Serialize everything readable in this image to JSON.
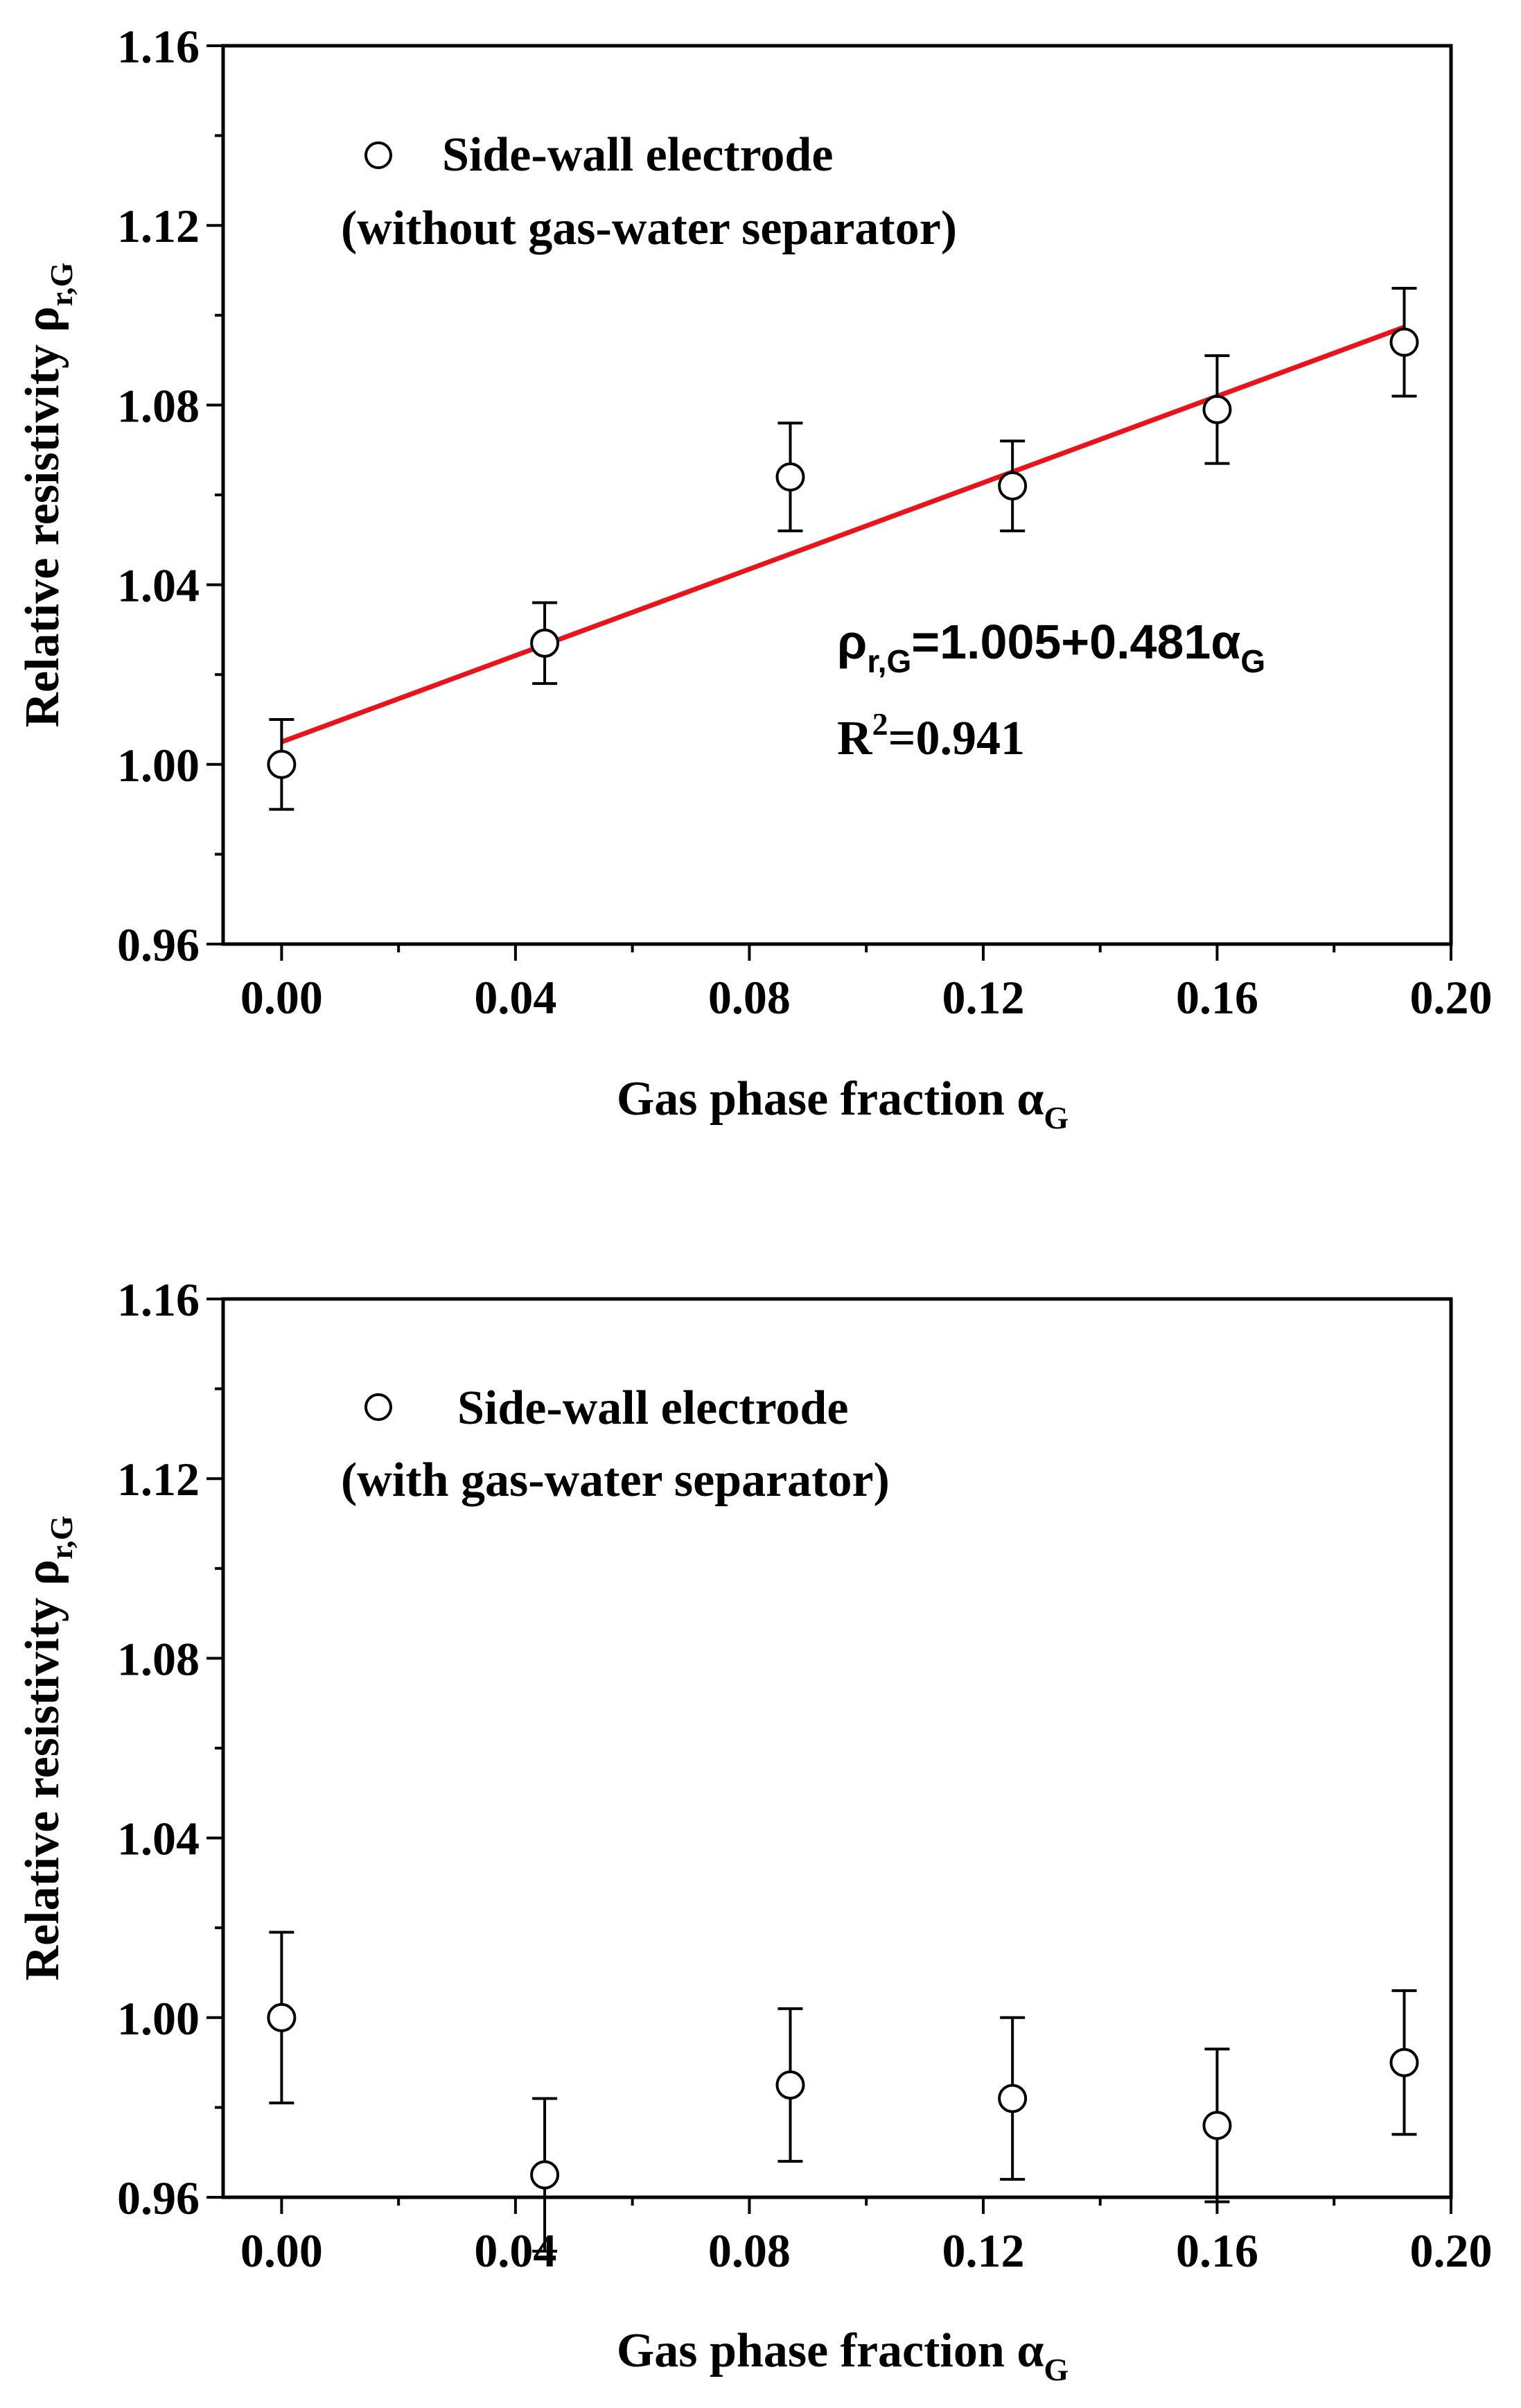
{
  "chart_data": [
    {
      "type": "scatter",
      "xlabel": "Gas phase fraction α",
      "xlabel_sub": "G",
      "ylabel": "Relative resistivity ρ",
      "ylabel_sub": "r,G",
      "xlim": [
        -0.01,
        0.2
      ],
      "ylim": [
        0.96,
        1.16
      ],
      "xticks": [
        "0.00",
        "0.04",
        "0.08",
        "0.12",
        "0.16",
        "0.20"
      ],
      "xtick_values": [
        0.0,
        0.04,
        0.08,
        0.12,
        0.16,
        0.2
      ],
      "yticks": [
        "0.96",
        "1.00",
        "1.04",
        "1.08",
        "1.12",
        "1.16"
      ],
      "ytick_values": [
        0.96,
        1.0,
        1.04,
        1.08,
        1.12,
        1.16
      ],
      "legend": {
        "marker": "open-circle",
        "line1": "Side-wall electrode",
        "line2": "(without gas-water separator)"
      },
      "series": [
        {
          "name": "Side-wall electrode (without gas-water separator)",
          "x": [
            0.0,
            0.045,
            0.087,
            0.125,
            0.16,
            0.192
          ],
          "y": [
            1.0,
            1.027,
            1.064,
            1.062,
            1.079,
            1.094
          ],
          "err": [
            0.01,
            0.009,
            0.012,
            0.01,
            0.012,
            0.012
          ]
        }
      ],
      "fit": {
        "intercept": 1.005,
        "slope": 0.481,
        "x_range": [
          0.0,
          0.192
        ],
        "color": "#e8141b",
        "equation": {
          "p1": "ρ",
          "p1_sub": "r,G",
          "p2": "=1.005+0.481α",
          "p2_sub": "G"
        },
        "r2": {
          "p1": "R",
          "p1_sup": "2",
          "p2": "=0.941"
        }
      }
    },
    {
      "type": "scatter",
      "xlabel": "Gas phase fraction α",
      "xlabel_sub": "G",
      "ylabel": "Relative resistivity ρ",
      "ylabel_sub": "r,G",
      "xlim": [
        -0.01,
        0.2
      ],
      "ylim": [
        0.96,
        1.16
      ],
      "xticks": [
        "0.00",
        "0.04",
        "0.08",
        "0.12",
        "0.16",
        "0.20"
      ],
      "xtick_values": [
        0.0,
        0.04,
        0.08,
        0.12,
        0.16,
        0.2
      ],
      "yticks": [
        "0.96",
        "1.00",
        "1.04",
        "1.08",
        "1.12",
        "1.16"
      ],
      "ytick_values": [
        0.96,
        1.0,
        1.04,
        1.08,
        1.12,
        1.16
      ],
      "legend": {
        "marker": "open-circle",
        "line1": "Side-wall electrode",
        "line2": "(with gas-water separator)"
      },
      "series": [
        {
          "name": "Side-wall electrode (with gas-water separator)",
          "x": [
            0.0,
            0.045,
            0.087,
            0.125,
            0.16,
            0.192
          ],
          "y": [
            1.0,
            0.965,
            0.985,
            0.982,
            0.976,
            0.99
          ],
          "err": [
            0.019,
            0.017,
            0.017,
            0.018,
            0.017,
            0.016
          ]
        }
      ]
    }
  ]
}
